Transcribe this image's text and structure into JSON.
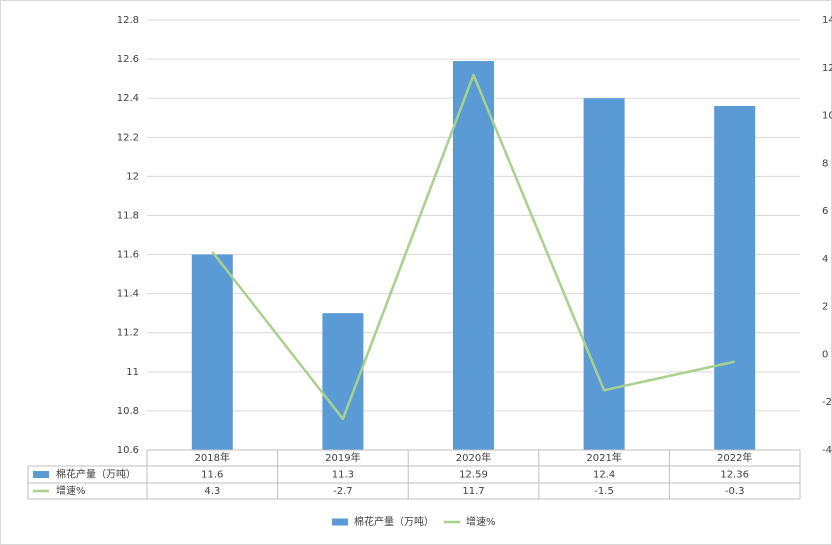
{
  "chart_data": {
    "type": "bar-line",
    "categories": [
      "2018年",
      "2019年",
      "2020年",
      "2021年",
      "2022年"
    ],
    "series": [
      {
        "name": "棉花产量（万吨）",
        "type": "bar",
        "color": "#5b9bd5",
        "values": [
          11.6,
          11.3,
          12.59,
          12.4,
          12.36
        ]
      },
      {
        "name": "增速%",
        "type": "line",
        "color": "#a9d18e",
        "axis": "y2",
        "values": [
          4.3,
          -2.7,
          11.7,
          -1.5,
          -0.3
        ]
      }
    ],
    "ylim": [
      10.6,
      12.8
    ],
    "yticks": [
      10.6,
      10.8,
      11,
      11.2,
      11.4,
      11.6,
      11.8,
      12,
      12.2,
      12.4,
      12.6,
      12.8
    ],
    "y2lim": [
      -4,
      14
    ],
    "y2ticks": [
      -4,
      -2,
      0,
      2,
      4,
      6,
      8,
      10,
      12,
      14
    ],
    "grid": true,
    "legend": "bottom",
    "data_table": true
  }
}
